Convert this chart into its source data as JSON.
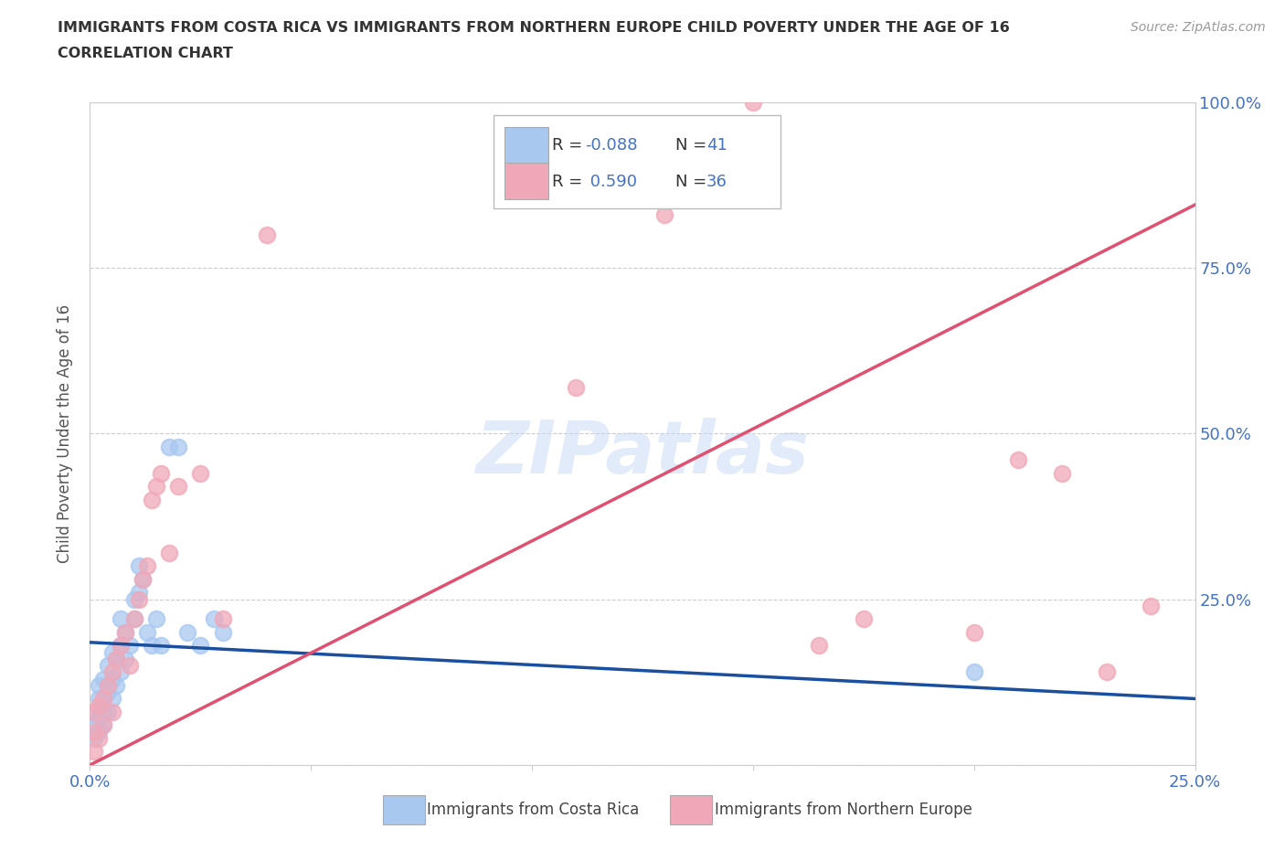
{
  "title": "IMMIGRANTS FROM COSTA RICA VS IMMIGRANTS FROM NORTHERN EUROPE CHILD POVERTY UNDER THE AGE OF 16",
  "subtitle": "CORRELATION CHART",
  "source": "Source: ZipAtlas.com",
  "ylabel": "Child Poverty Under the Age of 16",
  "xlim": [
    0.0,
    0.25
  ],
  "ylim": [
    0.0,
    1.0
  ],
  "xticks": [
    0.0,
    0.05,
    0.1,
    0.15,
    0.2,
    0.25
  ],
  "yticks": [
    0.0,
    0.25,
    0.5,
    0.75,
    1.0
  ],
  "xticklabels": [
    "0.0%",
    "",
    "",
    "",
    "",
    "25.0%"
  ],
  "yticklabels_right": [
    "",
    "25.0%",
    "50.0%",
    "75.0%",
    "100.0%"
  ],
  "blue_color": "#a8c8f0",
  "pink_color": "#f0a8b8",
  "blue_line_color": "#1a4fa0",
  "pink_line_color": "#e05070",
  "watermark": "ZIPatlas",
  "blue_line_x0": 0.0,
  "blue_line_y0": 0.185,
  "blue_line_x1": 0.25,
  "blue_line_y1": 0.1,
  "pink_line_x0": 0.0,
  "pink_line_y0": 0.0,
  "pink_line_x1": 0.25,
  "pink_line_y1": 0.845,
  "costa_rica_x": [
    0.001,
    0.001,
    0.001,
    0.002,
    0.002,
    0.002,
    0.002,
    0.003,
    0.003,
    0.003,
    0.003,
    0.004,
    0.004,
    0.004,
    0.005,
    0.005,
    0.005,
    0.006,
    0.006,
    0.007,
    0.007,
    0.007,
    0.008,
    0.008,
    0.009,
    0.01,
    0.01,
    0.011,
    0.011,
    0.012,
    0.013,
    0.014,
    0.015,
    0.016,
    0.018,
    0.02,
    0.022,
    0.025,
    0.028,
    0.03,
    0.2
  ],
  "costa_rica_y": [
    0.04,
    0.06,
    0.08,
    0.05,
    0.07,
    0.1,
    0.12,
    0.06,
    0.08,
    0.1,
    0.13,
    0.08,
    0.11,
    0.15,
    0.1,
    0.13,
    0.17,
    0.12,
    0.16,
    0.14,
    0.18,
    0.22,
    0.16,
    0.2,
    0.18,
    0.22,
    0.25,
    0.26,
    0.3,
    0.28,
    0.2,
    0.18,
    0.22,
    0.18,
    0.48,
    0.48,
    0.2,
    0.18,
    0.22,
    0.2,
    0.14
  ],
  "northern_europe_x": [
    0.001,
    0.001,
    0.001,
    0.002,
    0.002,
    0.003,
    0.003,
    0.004,
    0.005,
    0.005,
    0.006,
    0.007,
    0.008,
    0.009,
    0.01,
    0.011,
    0.012,
    0.013,
    0.014,
    0.015,
    0.016,
    0.018,
    0.02,
    0.025,
    0.03,
    0.04,
    0.11,
    0.13,
    0.15,
    0.165,
    0.175,
    0.2,
    0.21,
    0.22,
    0.23,
    0.24
  ],
  "northern_europe_y": [
    0.02,
    0.05,
    0.08,
    0.04,
    0.09,
    0.06,
    0.1,
    0.12,
    0.08,
    0.14,
    0.16,
    0.18,
    0.2,
    0.15,
    0.22,
    0.25,
    0.28,
    0.3,
    0.4,
    0.42,
    0.44,
    0.32,
    0.42,
    0.44,
    0.22,
    0.8,
    0.57,
    0.83,
    1.0,
    0.18,
    0.22,
    0.2,
    0.46,
    0.44,
    0.14,
    0.24
  ]
}
